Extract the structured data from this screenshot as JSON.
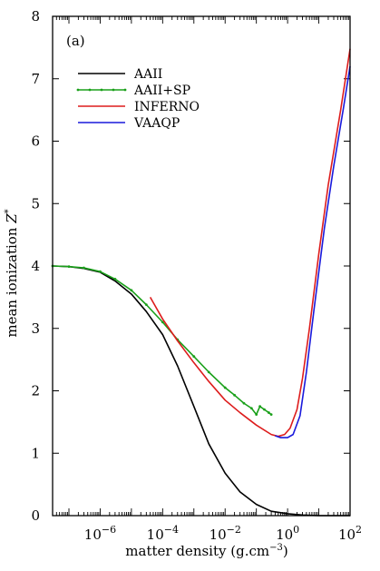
{
  "chart_data": {
    "type": "line",
    "panel_label": "(a)",
    "xlabel_main": "matter density (g.cm",
    "xlabel_sup": "−3",
    "xlabel_close": ")",
    "ylabel_main": "mean ionization ",
    "ylabel_var": "Z",
    "ylabel_sup": "*",
    "x_scale": "log",
    "xlim": [
      3e-08,
      100
    ],
    "ylim": [
      0,
      8
    ],
    "x_ticks": [
      {
        "value": 1e-06,
        "base": "10",
        "exp": "−6"
      },
      {
        "value": 0.0001,
        "base": "10",
        "exp": "−4"
      },
      {
        "value": 0.01,
        "base": "10",
        "exp": "−2"
      },
      {
        "value": 1,
        "base": "10",
        "exp": "0"
      },
      {
        "value": 100,
        "base": "10",
        "exp": "2"
      }
    ],
    "y_ticks": [
      "0",
      "1",
      "2",
      "3",
      "4",
      "5",
      "6",
      "7",
      "8"
    ],
    "legend_position": "top-left",
    "series": [
      {
        "name": "AAII",
        "color": "#000000",
        "marker": false,
        "points": [
          [
            3e-08,
            4.0
          ],
          [
            1e-07,
            3.99
          ],
          [
            3e-07,
            3.96
          ],
          [
            1e-06,
            3.9
          ],
          [
            3e-06,
            3.76
          ],
          [
            1e-05,
            3.55
          ],
          [
            3e-05,
            3.27
          ],
          [
            0.0001,
            2.9
          ],
          [
            0.0003,
            2.4
          ],
          [
            0.001,
            1.75
          ],
          [
            0.003,
            1.15
          ],
          [
            0.01,
            0.68
          ],
          [
            0.03,
            0.38
          ],
          [
            0.1,
            0.18
          ],
          [
            0.3,
            0.07
          ],
          [
            1,
            0.03
          ],
          [
            3,
            0.01
          ],
          [
            10,
            0.0
          ],
          [
            100,
            0.0
          ]
        ]
      },
      {
        "name": "AAII+SP",
        "color": "#1aa01a",
        "marker": true,
        "points": [
          [
            3e-08,
            4.0
          ],
          [
            1e-07,
            3.99
          ],
          [
            3e-07,
            3.97
          ],
          [
            1e-06,
            3.91
          ],
          [
            3e-06,
            3.79
          ],
          [
            1e-05,
            3.61
          ],
          [
            3e-05,
            3.38
          ],
          [
            0.0001,
            3.1
          ],
          [
            0.0003,
            2.82
          ],
          [
            0.001,
            2.55
          ],
          [
            0.003,
            2.3
          ],
          [
            0.01,
            2.05
          ],
          [
            0.02,
            1.93
          ],
          [
            0.04,
            1.8
          ],
          [
            0.07,
            1.72
          ],
          [
            0.1,
            1.62
          ],
          [
            0.13,
            1.75
          ],
          [
            0.18,
            1.7
          ],
          [
            0.25,
            1.65
          ],
          [
            0.3,
            1.62
          ]
        ]
      },
      {
        "name": "INFERNO",
        "color": "#dd1c1c",
        "marker": false,
        "points": [
          [
            4e-05,
            3.5
          ],
          [
            0.0001,
            3.15
          ],
          [
            0.0003,
            2.8
          ],
          [
            0.001,
            2.45
          ],
          [
            0.003,
            2.15
          ],
          [
            0.01,
            1.85
          ],
          [
            0.03,
            1.65
          ],
          [
            0.1,
            1.45
          ],
          [
            0.3,
            1.3
          ],
          [
            0.5,
            1.27
          ],
          [
            0.8,
            1.3
          ],
          [
            1.2,
            1.4
          ],
          [
            2,
            1.7
          ],
          [
            3,
            2.2
          ],
          [
            5,
            3.0
          ],
          [
            10,
            4.2
          ],
          [
            20,
            5.3
          ],
          [
            50,
            6.5
          ],
          [
            100,
            7.48
          ]
        ]
      },
      {
        "name": "VAAQP",
        "color": "#1a1adc",
        "marker": false,
        "points": [
          [
            0.4,
            1.28
          ],
          [
            0.6,
            1.25
          ],
          [
            1,
            1.25
          ],
          [
            1.5,
            1.3
          ],
          [
            2.5,
            1.6
          ],
          [
            4,
            2.3
          ],
          [
            7,
            3.3
          ],
          [
            15,
            4.6
          ],
          [
            30,
            5.6
          ],
          [
            60,
            6.5
          ],
          [
            100,
            7.2
          ]
        ]
      }
    ]
  }
}
